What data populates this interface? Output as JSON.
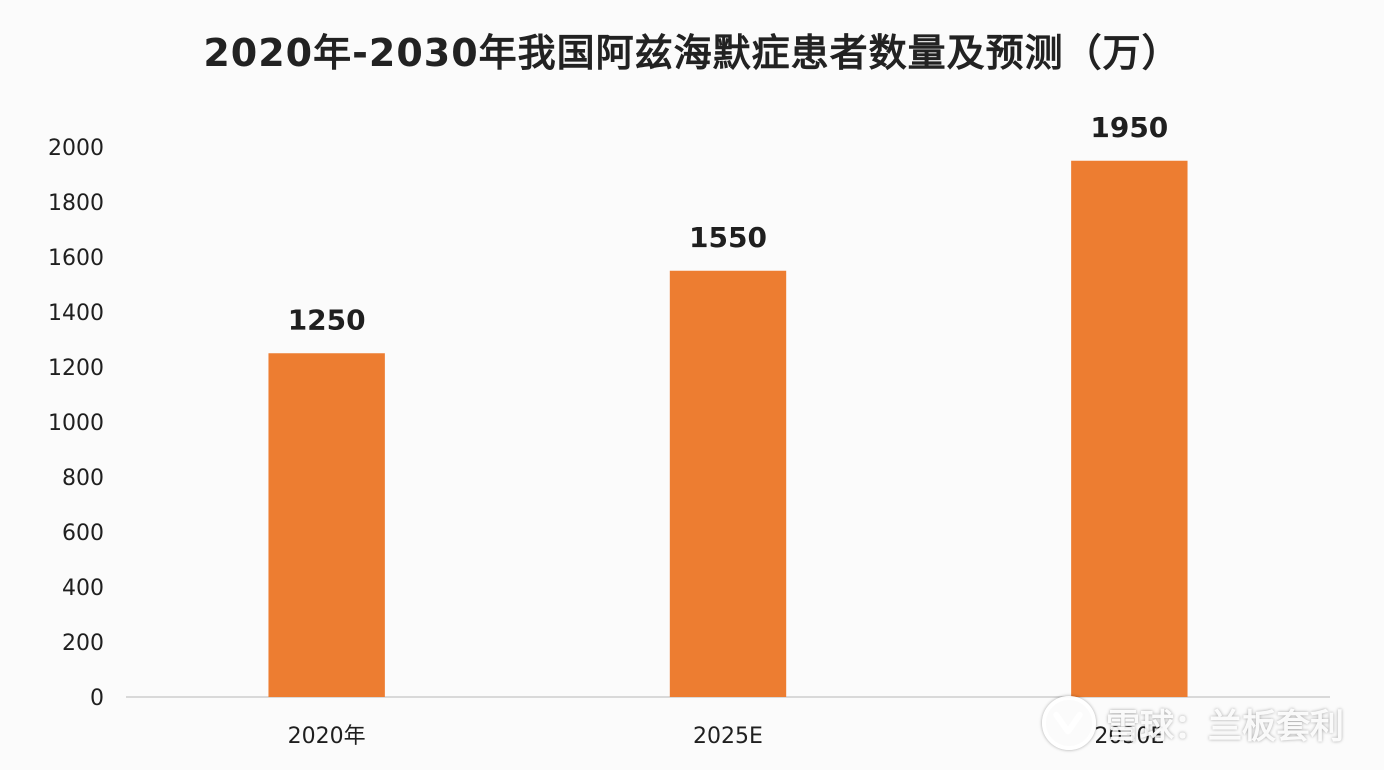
{
  "chart_data": {
    "type": "bar",
    "title": "2020年-2030年我国阿兹海默症患者数量及预测（万）",
    "categories": [
      "2020年",
      "2025E",
      "2030E"
    ],
    "values": [
      1250,
      1550,
      1950
    ],
    "ylim": [
      0,
      2000
    ],
    "yticks": [
      0,
      200,
      400,
      600,
      800,
      1000,
      1200,
      1400,
      1600,
      1800,
      2000
    ],
    "xlabel": "",
    "ylabel": "",
    "grid": false,
    "bar_color": "#ed7d31",
    "axis_color": "#d9d9d9",
    "data_labels": true
  },
  "watermark": {
    "text": "雪球：兰板套利",
    "icon": "snowball-logo-icon"
  }
}
